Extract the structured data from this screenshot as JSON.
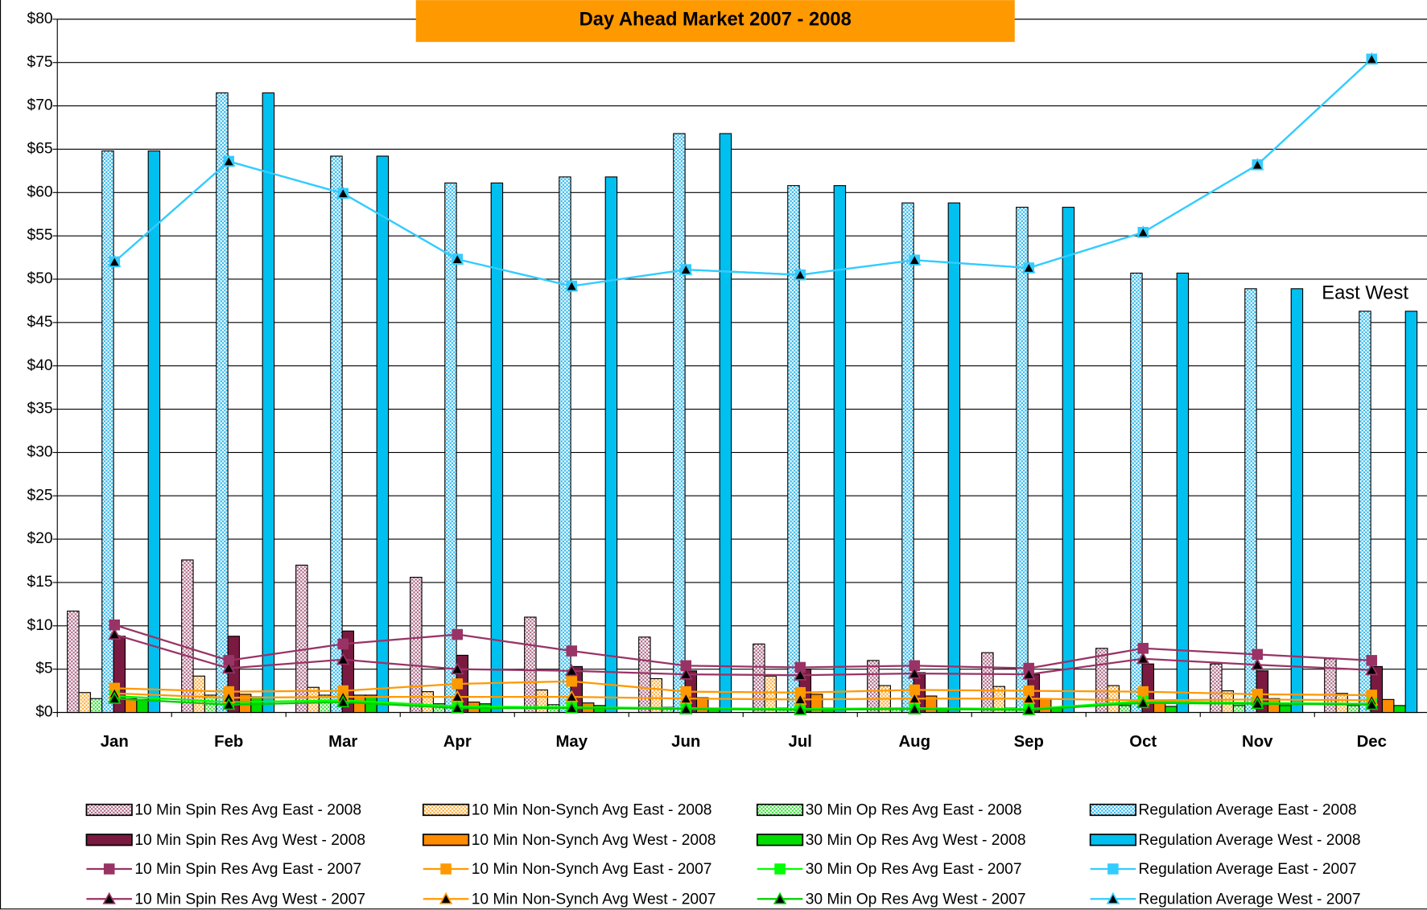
{
  "chart_data": {
    "type": "bar",
    "title": "Day Ahead Market  2007 - 2008",
    "annotation": "East West",
    "categories": [
      "Jan",
      "Feb",
      "Mar",
      "Apr",
      "May",
      "Jun",
      "Jul",
      "Aug",
      "Sep",
      "Oct",
      "Nov",
      "Dec"
    ],
    "ylim": [
      0,
      80
    ],
    "yticks": [
      {
        "value": 0,
        "label": "$0"
      },
      {
        "value": 5,
        "label": "$5"
      },
      {
        "value": 10,
        "label": "$10"
      },
      {
        "value": 15,
        "label": "$15"
      },
      {
        "value": 20,
        "label": "$20"
      },
      {
        "value": 25,
        "label": "$25"
      },
      {
        "value": 30,
        "label": "$30"
      },
      {
        "value": 35,
        "label": "$35"
      },
      {
        "value": 40,
        "label": "$40"
      },
      {
        "value": 45,
        "label": "$45"
      },
      {
        "value": 50,
        "label": "$50"
      },
      {
        "value": 55,
        "label": "$55"
      },
      {
        "value": 60,
        "label": "$60"
      },
      {
        "value": 65,
        "label": "$65"
      },
      {
        "value": 70,
        "label": "$70"
      },
      {
        "value": 75,
        "label": "$75"
      },
      {
        "value": 80,
        "label": "$80"
      }
    ],
    "grid": true,
    "series": [
      {
        "name": "10 Min Spin Res Avg East - 2008",
        "type": "bar",
        "pattern": true,
        "color": "#b06a88",
        "values": [
          11.7,
          17.6,
          17.0,
          15.6,
          11.0,
          8.7,
          7.9,
          6.0,
          6.9,
          7.4,
          5.6,
          6.2
        ]
      },
      {
        "name": "10 Min Non-Synch Avg East - 2008",
        "type": "bar",
        "pattern": true,
        "color": "#ffb040",
        "values": [
          2.3,
          4.2,
          2.9,
          2.4,
          2.6,
          3.9,
          4.2,
          3.1,
          3.0,
          3.1,
          2.5,
          2.2
        ]
      },
      {
        "name": "30 Min Op Res Avg East - 2008",
        "type": "bar",
        "pattern": true,
        "color": "#40e040",
        "values": [
          1.6,
          2.0,
          2.0,
          1.0,
          0.9,
          0.6,
          0.5,
          0.5,
          0.5,
          0.8,
          0.8,
          0.8
        ]
      },
      {
        "name": "Regulation Average East - 2008",
        "type": "bar",
        "pattern": true,
        "color": "#33bbee",
        "values": [
          64.8,
          71.5,
          64.2,
          61.1,
          61.8,
          66.8,
          60.8,
          58.8,
          58.3,
          50.7,
          48.9,
          46.3
        ]
      },
      {
        "name": "10 Min Spin Res Avg West - 2008",
        "type": "bar",
        "pattern": false,
        "color": "#7a1a40",
        "values": [
          8.8,
          8.8,
          9.4,
          6.6,
          5.3,
          4.8,
          5.0,
          4.6,
          4.4,
          5.6,
          4.8,
          5.3
        ]
      },
      {
        "name": "10 Min Non-Synch Avg West - 2008",
        "type": "bar",
        "pattern": false,
        "color": "#ff8c00",
        "values": [
          1.6,
          2.1,
          2.0,
          1.2,
          1.1,
          1.7,
          2.1,
          1.9,
          1.6,
          1.3,
          1.6,
          1.5
        ]
      },
      {
        "name": "30 Min Op Res Avg West - 2008",
        "type": "bar",
        "pattern": false,
        "color": "#00dd00",
        "values": [
          1.5,
          1.8,
          2.0,
          1.0,
          0.8,
          0.5,
          0.5,
          0.5,
          0.5,
          0.7,
          0.8,
          0.8
        ]
      },
      {
        "name": "Regulation Average West - 2008",
        "type": "bar",
        "pattern": false,
        "color": "#00c0f0",
        "values": [
          64.8,
          71.5,
          64.2,
          61.1,
          61.8,
          66.8,
          60.8,
          58.8,
          58.3,
          50.7,
          48.9,
          46.3
        ]
      },
      {
        "name": "10 Min Spin Res Avg East - 2007",
        "type": "line",
        "marker": "square",
        "color": "#993366",
        "values": [
          10.1,
          6.0,
          7.9,
          9.0,
          7.1,
          5.4,
          5.2,
          5.4,
          5.1,
          7.4,
          6.7,
          6.0
        ]
      },
      {
        "name": "10 Min Non-Synch Avg East - 2007",
        "type": "line",
        "marker": "square",
        "color": "#ff9900",
        "values": [
          2.8,
          2.4,
          2.5,
          3.3,
          3.6,
          2.4,
          2.3,
          2.6,
          2.5,
          2.4,
          2.1,
          2.0
        ]
      },
      {
        "name": "30 Min Op Res Avg East - 2007",
        "type": "line",
        "marker": "square",
        "color": "#00ff00",
        "values": [
          1.9,
          1.2,
          1.4,
          0.7,
          0.6,
          0.5,
          0.4,
          0.5,
          0.4,
          1.3,
          1.1,
          1.0
        ]
      },
      {
        "name": "Regulation Average East - 2007",
        "type": "line",
        "marker": "square",
        "color": "#33ccff",
        "values": [
          52.0,
          63.6,
          59.9,
          52.3,
          49.2,
          51.1,
          50.5,
          52.2,
          51.3,
          55.4,
          63.2,
          75.4
        ]
      },
      {
        "name": "10 Min Spin Res Avg West - 2007",
        "type": "line",
        "marker": "triangle",
        "color": "#993366",
        "values": [
          9.0,
          5.1,
          6.1,
          5.0,
          4.8,
          4.4,
          4.3,
          4.5,
          4.4,
          6.2,
          5.5,
          4.9
        ]
      },
      {
        "name": "10 Min Non-Synch Avg West - 2007",
        "type": "line",
        "marker": "triangle",
        "color": "#ff9900",
        "values": [
          2.2,
          1.7,
          1.8,
          1.8,
          1.8,
          1.6,
          1.5,
          1.6,
          1.6,
          1.4,
          1.5,
          1.4
        ]
      },
      {
        "name": "30 Min Op Res Avg West - 2007",
        "type": "line",
        "marker": "triangle",
        "color": "#00cc00",
        "values": [
          1.6,
          0.9,
          1.2,
          0.5,
          0.5,
          0.4,
          0.3,
          0.4,
          0.3,
          1.1,
          1.0,
          0.9
        ]
      },
      {
        "name": "Regulation Average West - 2007",
        "type": "line",
        "marker": "triangle",
        "color": "#33ccff",
        "values": [
          52.0,
          63.6,
          59.9,
          52.3,
          49.2,
          51.1,
          50.5,
          52.2,
          51.3,
          55.4,
          63.2,
          75.4
        ]
      }
    ]
  }
}
